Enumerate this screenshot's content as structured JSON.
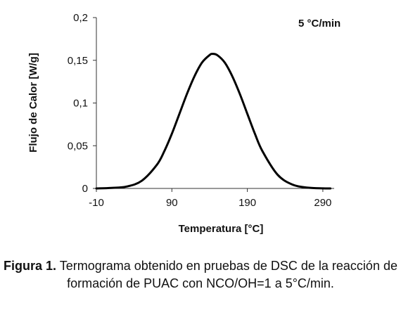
{
  "chart_data": {
    "type": "line",
    "annotation": "5 °C/min",
    "xlabel": "Temperatura [°C]",
    "ylabel": "Flujo de Calor [W/g]",
    "xlim": [
      -10,
      305
    ],
    "ylim": [
      0,
      0.2
    ],
    "xticks": [
      -10,
      90,
      190,
      290
    ],
    "xtick_labels": [
      "-10",
      "90",
      "190",
      "290"
    ],
    "yticks": [
      0,
      0.05,
      0.1,
      0.15,
      0.2
    ],
    "ytick_labels": [
      "0",
      "0,05",
      "0,1",
      "0,15",
      "0,2"
    ],
    "grid": false,
    "series": [
      {
        "color": "#000000",
        "x": [
          -10,
          10,
          30,
          50,
          70,
          80,
          90,
          100,
          110,
          120,
          130,
          140,
          144,
          150,
          160,
          170,
          180,
          190,
          200,
          210,
          230,
          250,
          270,
          290,
          300
        ],
        "y": [
          0,
          0.0006,
          0.0022,
          0.0089,
          0.0275,
          0.0436,
          0.064,
          0.0873,
          0.1107,
          0.1314,
          0.1474,
          0.1561,
          0.1575,
          0.1561,
          0.1474,
          0.1314,
          0.1107,
          0.0873,
          0.064,
          0.0436,
          0.0161,
          0.0044,
          0.0009,
          0.0001,
          0.0
        ]
      }
    ]
  },
  "caption": {
    "label": "Figura 1.",
    "text": " Termograma obtenido en pruebas de DSC de la reacción de formación de PUAC con NCO/OH=1 a 5°C/min."
  }
}
